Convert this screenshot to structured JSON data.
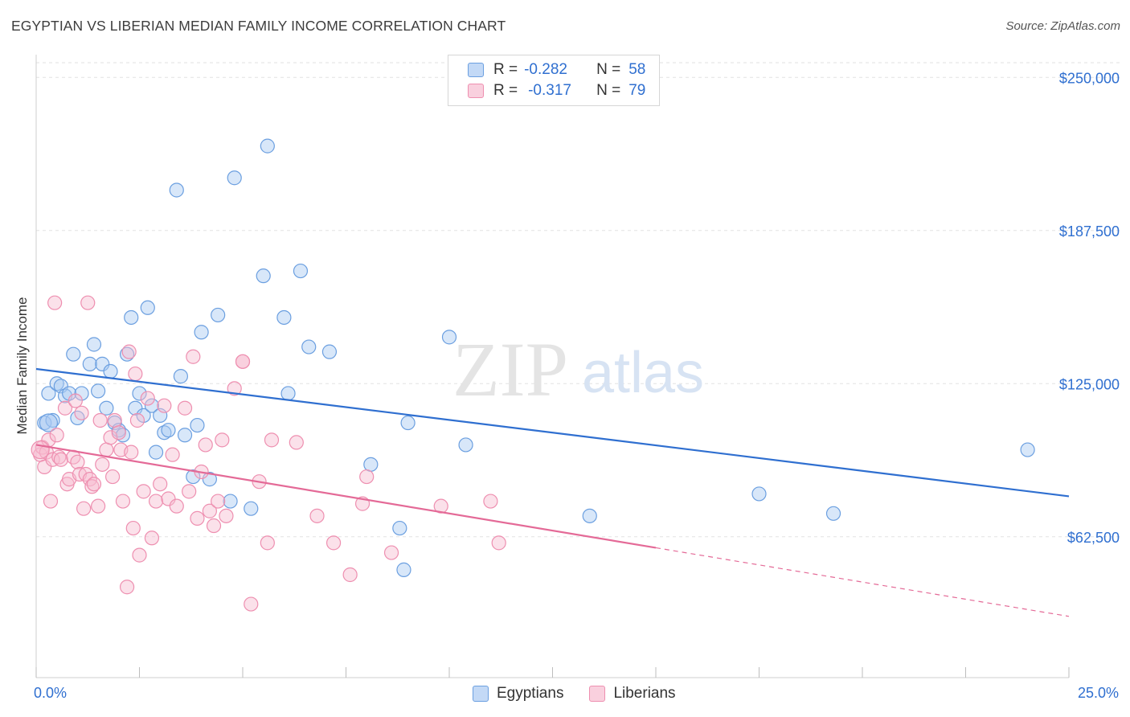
{
  "header": {
    "title": "EGYPTIAN VS LIBERIAN MEDIAN FAMILY INCOME CORRELATION CHART",
    "source": "Source: ZipAtlas.com"
  },
  "legend": {
    "r_label": "R =",
    "n_label": "N =",
    "egyptians": {
      "r": "-0.282",
      "n": "58"
    },
    "liberians": {
      "r": "-0.317",
      "n": "79"
    }
  },
  "watermark": {
    "zip": "ZIP",
    "atlas": "atlas"
  },
  "colors": {
    "egyptians_fill": "#a9c9f2",
    "egyptians_stroke": "#6b9fe0",
    "egyptians_line": "#2f6fd0",
    "liberians_fill": "#f7bcd0",
    "liberians_stroke": "#ee8fb0",
    "liberians_line": "#e46a97",
    "tick_label": "#2f6fd0"
  },
  "chart_data": {
    "type": "scatter",
    "title": "EGYPTIAN VS LIBERIAN MEDIAN FAMILY INCOME CORRELATION CHART",
    "xlabel": "",
    "ylabel": "Median Family Income",
    "xlim": [
      0,
      25
    ],
    "ylim": [
      5000,
      256000
    ],
    "x_tick_labels": [
      "0.0%",
      "25.0%"
    ],
    "y_ticks": [
      62500,
      125000,
      187500,
      250000
    ],
    "y_tick_labels": [
      "$62,500",
      "$125,000",
      "$187,500",
      "$250,000"
    ],
    "grid": "horizontal dashed",
    "series": [
      {
        "name": "Egyptians",
        "r": -0.282,
        "n": 58,
        "trend": {
          "x": [
            0,
            25
          ],
          "y": [
            131000,
            79000
          ],
          "solid_until": 25
        },
        "points": [
          [
            0.2,
            109000
          ],
          [
            0.3,
            121000
          ],
          [
            0.4,
            110000
          ],
          [
            0.5,
            125000
          ],
          [
            0.6,
            124000
          ],
          [
            0.7,
            120000
          ],
          [
            0.8,
            121000
          ],
          [
            0.9,
            137000
          ],
          [
            1.0,
            111000
          ],
          [
            1.1,
            121000
          ],
          [
            1.3,
            133000
          ],
          [
            1.4,
            141000
          ],
          [
            1.5,
            122000
          ],
          [
            1.6,
            133000
          ],
          [
            1.7,
            115000
          ],
          [
            1.8,
            130000
          ],
          [
            1.9,
            109000
          ],
          [
            2.0,
            106000
          ],
          [
            2.1,
            104000
          ],
          [
            2.2,
            137000
          ],
          [
            2.3,
            152000
          ],
          [
            2.4,
            115000
          ],
          [
            2.5,
            121000
          ],
          [
            2.6,
            112000
          ],
          [
            2.7,
            156000
          ],
          [
            2.8,
            116000
          ],
          [
            2.9,
            97000
          ],
          [
            3.0,
            112000
          ],
          [
            3.1,
            105000
          ],
          [
            3.2,
            106000
          ],
          [
            3.4,
            204000
          ],
          [
            3.5,
            128000
          ],
          [
            3.6,
            104000
          ],
          [
            3.8,
            87000
          ],
          [
            3.9,
            108000
          ],
          [
            4.0,
            146000
          ],
          [
            4.2,
            86000
          ],
          [
            4.4,
            153000
          ],
          [
            4.7,
            77000
          ],
          [
            4.8,
            209000
          ],
          [
            5.2,
            74000
          ],
          [
            5.5,
            169000
          ],
          [
            5.6,
            222000
          ],
          [
            6.0,
            152000
          ],
          [
            6.1,
            121000
          ],
          [
            6.4,
            171000
          ],
          [
            6.6,
            140000
          ],
          [
            7.1,
            138000
          ],
          [
            8.1,
            92000
          ],
          [
            8.8,
            66000
          ],
          [
            8.9,
            49000
          ],
          [
            9.0,
            109000
          ],
          [
            10.0,
            144000
          ],
          [
            10.4,
            100000
          ],
          [
            13.4,
            71000
          ],
          [
            17.5,
            80000
          ],
          [
            19.3,
            72000
          ],
          [
            24.0,
            98000
          ]
        ]
      },
      {
        "name": "Liberians",
        "r": -0.317,
        "n": 79,
        "trend": {
          "x": [
            0,
            25
          ],
          "y": [
            100000,
            30000
          ],
          "solid_until": 15
        },
        "points": [
          [
            0.1,
            96000
          ],
          [
            0.15,
            99000
          ],
          [
            0.2,
            91000
          ],
          [
            0.25,
            97000
          ],
          [
            0.3,
            102000
          ],
          [
            0.35,
            77000
          ],
          [
            0.4,
            94000
          ],
          [
            0.5,
            104000
          ],
          [
            0.55,
            95000
          ],
          [
            0.6,
            94000
          ],
          [
            0.7,
            115000
          ],
          [
            0.75,
            84000
          ],
          [
            0.8,
            86000
          ],
          [
            0.9,
            95000
          ],
          [
            0.95,
            118000
          ],
          [
            1.0,
            93000
          ],
          [
            1.05,
            88000
          ],
          [
            1.1,
            113000
          ],
          [
            1.15,
            74000
          ],
          [
            1.2,
            88000
          ],
          [
            1.3,
            86000
          ],
          [
            1.35,
            83000
          ],
          [
            1.4,
            84000
          ],
          [
            1.5,
            75000
          ],
          [
            1.55,
            110000
          ],
          [
            1.6,
            92000
          ],
          [
            1.7,
            98000
          ],
          [
            1.8,
            103000
          ],
          [
            1.85,
            87000
          ],
          [
            1.9,
            110000
          ],
          [
            2.0,
            105000
          ],
          [
            2.05,
            98000
          ],
          [
            2.1,
            77000
          ],
          [
            2.2,
            42000
          ],
          [
            2.25,
            138000
          ],
          [
            2.3,
            97000
          ],
          [
            2.35,
            66000
          ],
          [
            2.4,
            129000
          ],
          [
            2.5,
            55000
          ],
          [
            2.6,
            81000
          ],
          [
            2.7,
            119000
          ],
          [
            2.8,
            62000
          ],
          [
            2.9,
            77000
          ],
          [
            3.0,
            84000
          ],
          [
            3.1,
            116000
          ],
          [
            3.2,
            78000
          ],
          [
            3.3,
            96000
          ],
          [
            3.4,
            75000
          ],
          [
            3.6,
            115000
          ],
          [
            3.7,
            81000
          ],
          [
            3.8,
            136000
          ],
          [
            3.9,
            70000
          ],
          [
            4.0,
            89000
          ],
          [
            4.1,
            100000
          ],
          [
            4.2,
            73000
          ],
          [
            4.3,
            67000
          ],
          [
            4.4,
            77000
          ],
          [
            4.5,
            102000
          ],
          [
            4.6,
            71000
          ],
          [
            4.8,
            123000
          ],
          [
            5.0,
            134000
          ],
          [
            5.2,
            35000
          ],
          [
            5.4,
            85000
          ],
          [
            5.6,
            60000
          ],
          [
            5.7,
            102000
          ],
          [
            6.3,
            101000
          ],
          [
            6.8,
            71000
          ],
          [
            7.2,
            60000
          ],
          [
            7.6,
            47000
          ],
          [
            7.9,
            76000
          ],
          [
            8.0,
            87000
          ],
          [
            8.6,
            56000
          ],
          [
            9.8,
            75000
          ],
          [
            11.0,
            77000
          ],
          [
            11.2,
            60000
          ],
          [
            0.45,
            158000
          ],
          [
            5.0,
            134000
          ],
          [
            1.25,
            158000
          ],
          [
            2.45,
            110000
          ]
        ]
      }
    ]
  }
}
